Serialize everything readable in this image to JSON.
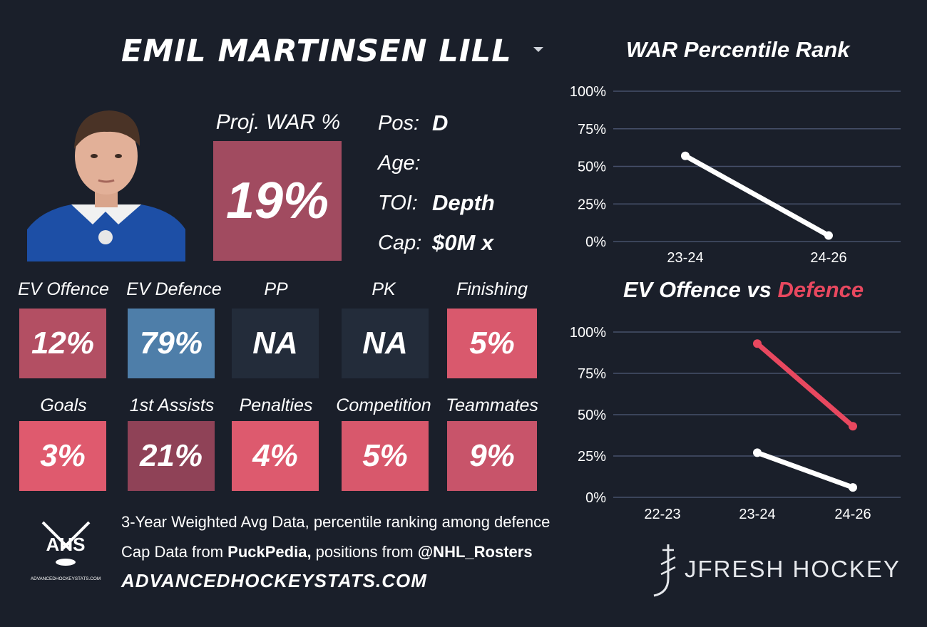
{
  "player": {
    "name": "EMIL MARTINSEN LILL"
  },
  "projected": {
    "label": "Proj. WAR %",
    "value": "19%",
    "color": "#a14b60"
  },
  "info": [
    {
      "key": "Pos:",
      "value": "D"
    },
    {
      "key": "Age:",
      "value": ""
    },
    {
      "key": "TOI:",
      "value": "Depth"
    },
    {
      "key": "Cap:",
      "value": "$0M x"
    }
  ],
  "stats_row1": [
    {
      "label": "EV Offence",
      "value": "12%",
      "color": "#b34f63"
    },
    {
      "label": "EV Defence",
      "value": "79%",
      "color": "#4e7ea9"
    },
    {
      "label": "PP",
      "value": "NA",
      "color": "#232c3a"
    },
    {
      "label": "PK",
      "value": "NA",
      "color": "#232c3a"
    },
    {
      "label": "Finishing",
      "value": "5%",
      "color": "#d9596d"
    }
  ],
  "stats_row2": [
    {
      "label": "Goals",
      "value": "3%",
      "color": "#df5a6e"
    },
    {
      "label": "1st Assists",
      "value": "21%",
      "color": "#8f4257"
    },
    {
      "label": "Penalties",
      "value": "4%",
      "color": "#dd5a6e"
    },
    {
      "label": "Competition",
      "value": "5%",
      "color": "#d8586c"
    },
    {
      "label": "Teammates",
      "value": "9%",
      "color": "#c8546a"
    }
  ],
  "footer": {
    "line1": "3-Year Weighted Avg Data, percentile ranking among defence",
    "line2_prefix": "Cap Data from ",
    "line2_source": "PuckPedia,",
    "line2_mid": " positions from ",
    "line2_handle": "@NHL_Rosters",
    "url": "ADVANCEDHOCKEYSTATS.COM",
    "ahs_logo_text": "AHS",
    "ahs_logo_sub": "ADVANCEDHOCKEYSTATS.COM",
    "brand": "JFRESH HOCKEY"
  },
  "chart_data": [
    {
      "type": "line",
      "title": "WAR Percentile Rank",
      "categories": [
        "23-24",
        "24-26"
      ],
      "yticks": [
        "100%",
        "75%",
        "50%",
        "25%",
        "0%"
      ],
      "ylim": [
        0,
        100
      ],
      "grid": true,
      "series": [
        {
          "values": [
            57,
            4
          ],
          "color": "#ffffff"
        }
      ]
    },
    {
      "type": "line",
      "title_part1": "EV Offence vs ",
      "title_part2": "Defence",
      "title_part2_color": "#e8485f",
      "categories": [
        "22-23",
        "23-24",
        "24-26"
      ],
      "yticks": [
        "100%",
        "75%",
        "50%",
        "25%",
        "0%"
      ],
      "ylim": [
        0,
        100
      ],
      "grid": true,
      "series": [
        {
          "values": [
            null,
            27,
            6
          ],
          "color": "#ffffff"
        },
        {
          "values": [
            null,
            93,
            43
          ],
          "color": "#e8485f"
        }
      ]
    }
  ]
}
